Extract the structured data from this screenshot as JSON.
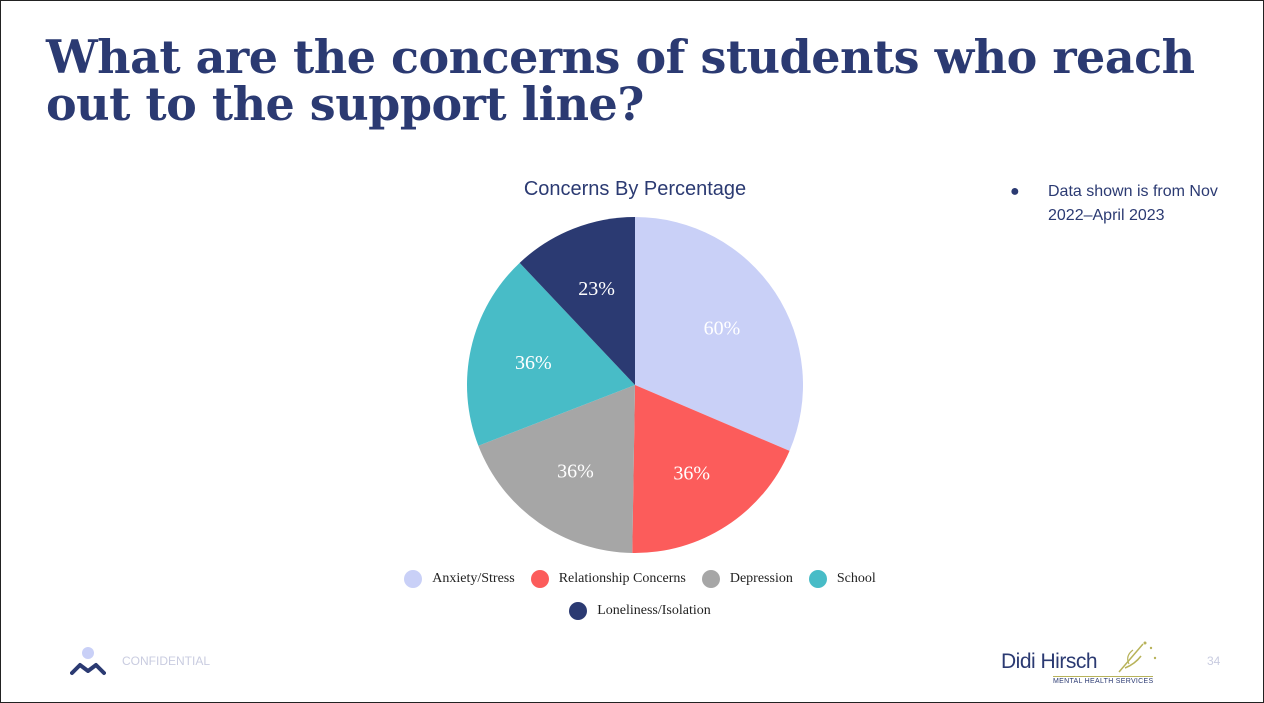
{
  "slide": {
    "title": "What are the concerns of students who reach out to the support line?",
    "note": "Data shown is from Nov 2022–April 2023",
    "footer_label": "CONFIDENTIAL",
    "page_number": "34",
    "brand_name": "Didi Hirsch",
    "brand_subtitle": "MENTAL HEALTH SERVICES"
  },
  "chart_data": {
    "type": "pie",
    "title": "Concerns By Percentage",
    "legend_position": "bottom",
    "categories": [
      "Anxiety/Stress",
      "Relationship Concerns",
      "Depression",
      "School",
      "Loneliness/Isolation"
    ],
    "values": [
      60,
      36,
      36,
      36,
      23
    ],
    "value_labels": [
      "60%",
      "36%",
      "36%",
      "36%",
      "23%"
    ],
    "colors": [
      "#c9d0f7",
      "#fc5c5b",
      "#a6a6a6",
      "#48bcc7",
      "#2b3a72"
    ]
  }
}
